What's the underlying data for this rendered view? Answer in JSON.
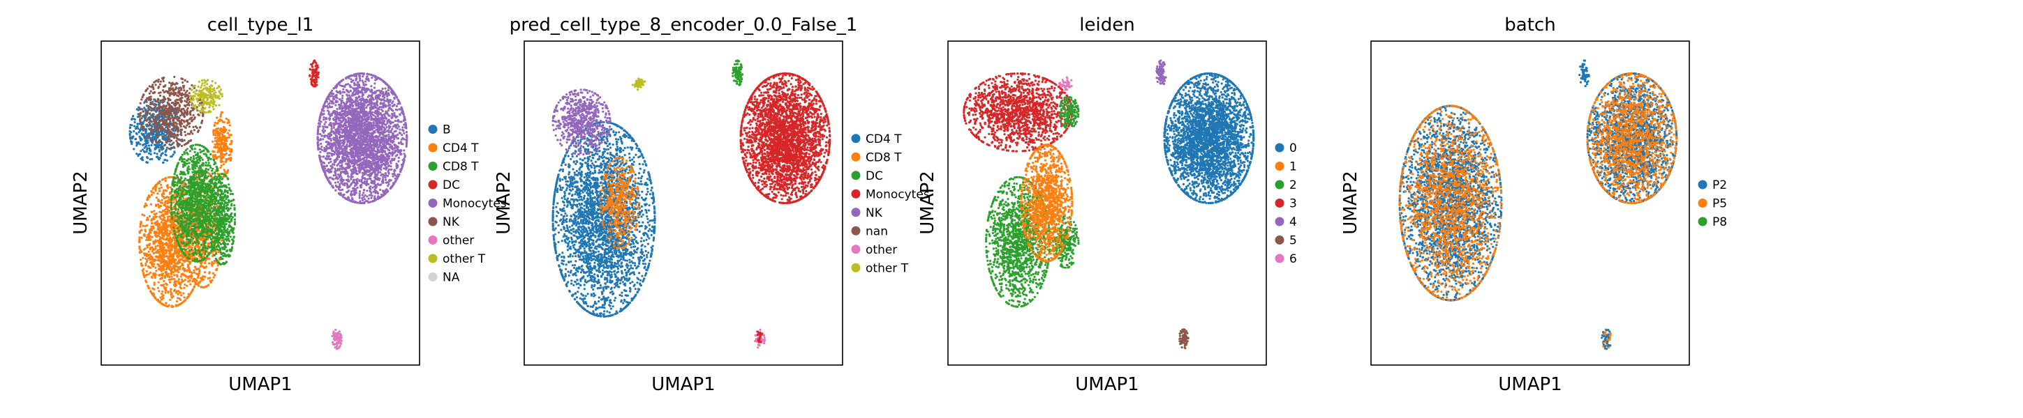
{
  "chart_data": [
    {
      "type": "scatter",
      "title": "cell_type_l1",
      "xlabel": "UMAP1",
      "ylabel": "UMAP2",
      "axis_ticks": "none",
      "grid": false,
      "legend_placement": "right-outside",
      "legend": [
        {
          "label": "B",
          "color": "#1f77b4"
        },
        {
          "label": "CD4 T",
          "color": "#ff7f0e"
        },
        {
          "label": "CD8 T",
          "color": "#2ca02c"
        },
        {
          "label": "DC",
          "color": "#d62728"
        },
        {
          "label": "Monocytes",
          "color": "#9467bd"
        },
        {
          "label": "NK",
          "color": "#8c564b"
        },
        {
          "label": "other",
          "color": "#e377c2"
        },
        {
          "label": "other T",
          "color": "#bcbd22"
        },
        {
          "label": "NA",
          "color": "#d3d3d3"
        }
      ],
      "clusters": [
        {
          "color": "#1f77b4",
          "cx": 0.17,
          "cy": 0.72,
          "rx": 0.08,
          "ry": 0.1,
          "n": 500
        },
        {
          "color": "#8c564b",
          "cx": 0.22,
          "cy": 0.78,
          "rx": 0.1,
          "ry": 0.11,
          "n": 650
        },
        {
          "color": "#bcbd22",
          "cx": 0.33,
          "cy": 0.83,
          "rx": 0.05,
          "ry": 0.05,
          "n": 200
        },
        {
          "color": "#ff7f0e",
          "cx": 0.22,
          "cy": 0.38,
          "rx": 0.1,
          "ry": 0.2,
          "n": 1500
        },
        {
          "color": "#ff7f0e",
          "cx": 0.32,
          "cy": 0.42,
          "rx": 0.06,
          "ry": 0.18,
          "n": 600
        },
        {
          "color": "#ff7f0e",
          "cx": 0.38,
          "cy": 0.68,
          "rx": 0.03,
          "ry": 0.1,
          "n": 250
        },
        {
          "color": "#2ca02c",
          "cx": 0.3,
          "cy": 0.5,
          "rx": 0.08,
          "ry": 0.18,
          "n": 1300
        },
        {
          "color": "#2ca02c",
          "cx": 0.38,
          "cy": 0.45,
          "rx": 0.04,
          "ry": 0.14,
          "n": 450
        },
        {
          "color": "#9467bd",
          "cx": 0.82,
          "cy": 0.7,
          "rx": 0.14,
          "ry": 0.2,
          "n": 3200
        },
        {
          "color": "#d62728",
          "cx": 0.67,
          "cy": 0.9,
          "rx": 0.015,
          "ry": 0.04,
          "n": 90
        },
        {
          "color": "#e377c2",
          "cx": 0.74,
          "cy": 0.08,
          "rx": 0.015,
          "ry": 0.03,
          "n": 70
        }
      ]
    },
    {
      "type": "scatter",
      "title": "pred_cell_type_8_encoder_0.0_False_1",
      "xlabel": "UMAP1",
      "ylabel": "UMAP2",
      "axis_ticks": "none",
      "grid": false,
      "legend_placement": "right-outside",
      "legend": [
        {
          "label": "CD4 T",
          "color": "#1f77b4"
        },
        {
          "label": "CD8 T",
          "color": "#ff7f0e"
        },
        {
          "label": "DC",
          "color": "#2ca02c"
        },
        {
          "label": "Monocytes",
          "color": "#d62728"
        },
        {
          "label": "NK",
          "color": "#9467bd"
        },
        {
          "label": "nan",
          "color": "#8c564b"
        },
        {
          "label": "other",
          "color": "#e377c2"
        },
        {
          "label": "other T",
          "color": "#bcbd22"
        }
      ],
      "clusters": [
        {
          "color": "#1f77b4",
          "cx": 0.25,
          "cy": 0.45,
          "rx": 0.16,
          "ry": 0.3,
          "n": 3200
        },
        {
          "color": "#9467bd",
          "cx": 0.18,
          "cy": 0.75,
          "rx": 0.09,
          "ry": 0.1,
          "n": 650
        },
        {
          "color": "#ff7f0e",
          "cx": 0.3,
          "cy": 0.5,
          "rx": 0.06,
          "ry": 0.14,
          "n": 450
        },
        {
          "color": "#bcbd22",
          "cx": 0.36,
          "cy": 0.87,
          "rx": 0.02,
          "ry": 0.02,
          "n": 40
        },
        {
          "color": "#d62728",
          "cx": 0.82,
          "cy": 0.7,
          "rx": 0.14,
          "ry": 0.2,
          "n": 3200
        },
        {
          "color": "#2ca02c",
          "cx": 0.67,
          "cy": 0.9,
          "rx": 0.015,
          "ry": 0.04,
          "n": 90
        },
        {
          "color": "#e377c2",
          "cx": 0.74,
          "cy": 0.08,
          "rx": 0.015,
          "ry": 0.03,
          "n": 60
        },
        {
          "color": "#d62728",
          "cx": 0.74,
          "cy": 0.09,
          "rx": 0.008,
          "ry": 0.02,
          "n": 20
        }
      ]
    },
    {
      "type": "scatter",
      "title": "leiden",
      "xlabel": "UMAP1",
      "ylabel": "UMAP2",
      "axis_ticks": "none",
      "grid": false,
      "legend_placement": "right-outside",
      "legend": [
        {
          "label": "0",
          "color": "#1f77b4"
        },
        {
          "label": "1",
          "color": "#ff7f0e"
        },
        {
          "label": "2",
          "color": "#2ca02c"
        },
        {
          "label": "3",
          "color": "#d62728"
        },
        {
          "label": "4",
          "color": "#9467bd"
        },
        {
          "label": "5",
          "color": "#8c564b"
        },
        {
          "label": "6",
          "color": "#e377c2"
        }
      ],
      "clusters": [
        {
          "color": "#d62728",
          "cx": 0.22,
          "cy": 0.78,
          "rx": 0.17,
          "ry": 0.12,
          "n": 1500
        },
        {
          "color": "#2ca02c",
          "cx": 0.22,
          "cy": 0.38,
          "rx": 0.1,
          "ry": 0.2,
          "n": 1400
        },
        {
          "color": "#2ca02c",
          "cx": 0.37,
          "cy": 0.38,
          "rx": 0.04,
          "ry": 0.08,
          "n": 250
        },
        {
          "color": "#2ca02c",
          "cx": 0.38,
          "cy": 0.78,
          "rx": 0.03,
          "ry": 0.05,
          "n": 150
        },
        {
          "color": "#ff7f0e",
          "cx": 0.31,
          "cy": 0.5,
          "rx": 0.08,
          "ry": 0.18,
          "n": 1200
        },
        {
          "color": "#e377c2",
          "cx": 0.37,
          "cy": 0.87,
          "rx": 0.02,
          "ry": 0.02,
          "n": 40
        },
        {
          "color": "#1f77b4",
          "cx": 0.82,
          "cy": 0.7,
          "rx": 0.14,
          "ry": 0.2,
          "n": 3200
        },
        {
          "color": "#9467bd",
          "cx": 0.67,
          "cy": 0.9,
          "rx": 0.015,
          "ry": 0.04,
          "n": 90
        },
        {
          "color": "#8c564b",
          "cx": 0.74,
          "cy": 0.08,
          "rx": 0.015,
          "ry": 0.03,
          "n": 70
        }
      ]
    },
    {
      "type": "scatter",
      "title": "batch",
      "xlabel": "UMAP1",
      "ylabel": "UMAP2",
      "axis_ticks": "none",
      "grid": false,
      "legend_placement": "right-outside",
      "legend": [
        {
          "label": "P2",
          "color": "#1f77b4"
        },
        {
          "label": "P5",
          "color": "#ff7f0e"
        },
        {
          "label": "P8",
          "color": "#2ca02c"
        }
      ],
      "clusters": [
        {
          "color": "#1f77b4",
          "cx": 0.25,
          "cy": 0.5,
          "rx": 0.16,
          "ry": 0.3,
          "n": 2600
        },
        {
          "color": "#ff7f0e",
          "cx": 0.25,
          "cy": 0.5,
          "rx": 0.16,
          "ry": 0.3,
          "n": 1700
        },
        {
          "color": "#1f77b4",
          "cx": 0.82,
          "cy": 0.7,
          "rx": 0.14,
          "ry": 0.2,
          "n": 1900
        },
        {
          "color": "#ff7f0e",
          "cx": 0.82,
          "cy": 0.7,
          "rx": 0.14,
          "ry": 0.2,
          "n": 1400
        },
        {
          "color": "#1f77b4",
          "cx": 0.67,
          "cy": 0.9,
          "rx": 0.015,
          "ry": 0.04,
          "n": 60
        },
        {
          "color": "#ff7f0e",
          "cx": 0.74,
          "cy": 0.08,
          "rx": 0.015,
          "ry": 0.03,
          "n": 45
        },
        {
          "color": "#1f77b4",
          "cx": 0.74,
          "cy": 0.08,
          "rx": 0.015,
          "ry": 0.03,
          "n": 25
        }
      ]
    }
  ]
}
